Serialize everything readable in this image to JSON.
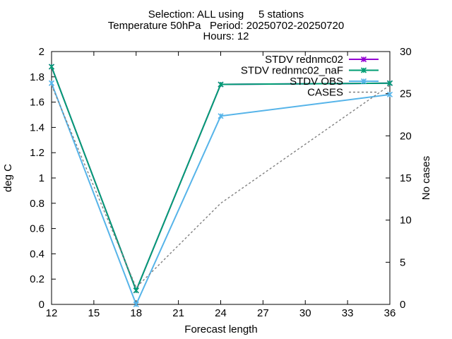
{
  "chart_data": {
    "type": "line",
    "title_lines": [
      "Selection: ALL using     5 stations",
      "Temperature 50hPa   Period: 20250702-20250720",
      "Hours: 12"
    ],
    "xlabel": "Forecast length",
    "ylabel": "deg C",
    "y2label": "No cases",
    "xlim": [
      12,
      36
    ],
    "ylim": [
      0,
      2
    ],
    "y2lim": [
      0,
      30
    ],
    "xticks": [
      12,
      15,
      18,
      21,
      24,
      27,
      30,
      33,
      36
    ],
    "yticks": [
      "0",
      "0.2",
      "0.4",
      "0.6",
      "0.8",
      "1",
      "1.2",
      "1.4",
      "1.6",
      "1.8",
      "2"
    ],
    "y2ticks": [
      "0",
      "5",
      "10",
      "15",
      "20",
      "25",
      "30"
    ],
    "legend_position": "top-right",
    "grid": false,
    "series": [
      {
        "name": "STDV rednmc02",
        "axis": "y1",
        "color": "#9400d3",
        "style": "solid",
        "marker": "x",
        "x": [
          12,
          18,
          24,
          36
        ],
        "values": [
          1.88,
          0.11,
          1.74,
          1.75
        ]
      },
      {
        "name": "STDV rednmc02_naF",
        "axis": "y1",
        "color": "#009e73",
        "style": "solid",
        "marker": "x",
        "x": [
          12,
          18,
          24,
          36
        ],
        "values": [
          1.88,
          0.11,
          1.74,
          1.75
        ]
      },
      {
        "name": "STDV OBS",
        "axis": "y1",
        "color": "#56b4e9",
        "style": "solid",
        "marker": "x",
        "x": [
          12,
          18,
          24,
          36
        ],
        "values": [
          1.75,
          0.0,
          1.49,
          1.66
        ]
      },
      {
        "name": "CASES",
        "axis": "y2",
        "color": "#808080",
        "style": "dashed",
        "marker": "none",
        "x": [
          12,
          18,
          24,
          36
        ],
        "values": [
          26,
          2,
          12,
          26
        ]
      }
    ]
  }
}
